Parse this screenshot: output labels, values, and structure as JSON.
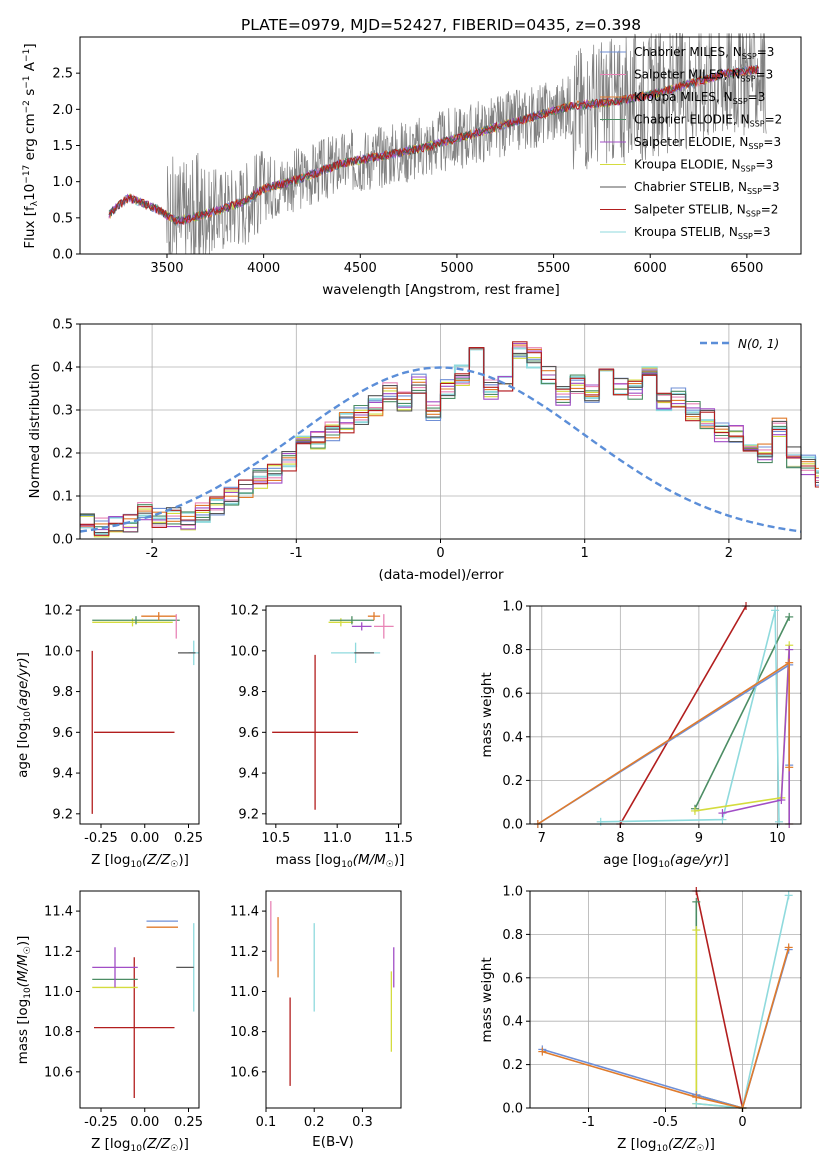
{
  "title": "PLATE=0979, MJD=52427, FIBERID=0435, z=0.398",
  "colors": {
    "observed": "#808080",
    "Chabrier MILES": "#6f8fd6",
    "Salpeter MILES": "#e884b6",
    "Kroupa MILES": "#e07b2c",
    "Chabrier ELODIE": "#4c8d64",
    "Salpeter ELODIE": "#a14ec6",
    "Kroupa ELODIE": "#d4dc3e",
    "Chabrier STELIB": "#555555",
    "Salpeter STELIB": "#b21e1e",
    "Kroupa STELIB": "#8fdadd",
    "normal_fit": "#5b8ed8"
  },
  "chart_data": [
    {
      "type": "line",
      "xlabel": "wavelength [Angstrom, rest frame]",
      "ylabel": "Flux [f_λ 10^-17 erg cm^-2 s^-1 A^-1]",
      "xlim": [
        3050,
        6780
      ],
      "ylim": [
        0,
        3.0
      ],
      "xticks": [
        3500,
        4000,
        4500,
        5000,
        5500,
        6000,
        6500
      ],
      "yticks": [
        0.0,
        0.5,
        1.0,
        1.5,
        2.0,
        2.5
      ],
      "legend_position": "top-right",
      "legend": [
        {
          "model": "Chabrier MILES",
          "n": "3"
        },
        {
          "model": "Salpeter MILES",
          "n": "3"
        },
        {
          "model": "Kroupa MILES",
          "n": "3"
        },
        {
          "model": "Chabrier ELODIE",
          "n": "2"
        },
        {
          "model": "Salpeter ELODIE",
          "n": "3"
        },
        {
          "model": "Kroupa ELODIE",
          "n": "3"
        },
        {
          "model": "Chabrier STELIB",
          "n": "3"
        },
        {
          "model": "Salpeter STELIB",
          "n": "2"
        },
        {
          "model": "Kroupa STELIB",
          "n": "3"
        }
      ],
      "model_continuum": {
        "x": [
          3200,
          3300,
          3450,
          3550,
          3700,
          3900,
          4000,
          4200,
          4400,
          4600,
          4800,
          5000,
          5200,
          5400,
          5600,
          5800,
          6000,
          6200,
          6400,
          6560
        ],
        "y": [
          0.55,
          0.78,
          0.62,
          0.45,
          0.55,
          0.72,
          0.9,
          1.05,
          1.25,
          1.35,
          1.45,
          1.6,
          1.75,
          1.9,
          2.05,
          2.1,
          2.2,
          2.35,
          2.5,
          2.55
        ]
      }
    },
    {
      "type": "line",
      "xlabel": "(data-model)/error",
      "ylabel": "Normed distribution",
      "xlim": [
        -2.5,
        2.5
      ],
      "ylim": [
        0,
        0.5
      ],
      "xticks": [
        -2,
        -1,
        0,
        1,
        2
      ],
      "yticks": [
        0.0,
        0.1,
        0.2,
        0.3,
        0.4,
        0.5
      ],
      "legend_position": "top-right",
      "normal_label": "N(0,1)",
      "hist_x_start": -2.5,
      "hist_bin_width": 0.1,
      "hist_values": [
        0.04,
        0.03,
        0.03,
        0.04,
        0.06,
        0.05,
        0.05,
        0.04,
        0.06,
        0.08,
        0.1,
        0.12,
        0.14,
        0.15,
        0.18,
        0.22,
        0.23,
        0.25,
        0.27,
        0.29,
        0.31,
        0.34,
        0.32,
        0.36,
        0.3,
        0.35,
        0.38,
        0.46,
        0.35,
        0.36,
        0.44,
        0.42,
        0.38,
        0.33,
        0.36,
        0.34,
        0.39,
        0.36,
        0.35,
        0.38,
        0.32,
        0.33,
        0.3,
        0.28,
        0.25,
        0.24,
        0.22,
        0.2,
        0.26,
        0.19,
        0.17,
        0.14,
        0.13,
        0.12,
        0.13,
        0.1,
        0.09,
        0.08,
        0.07,
        0.08,
        0.09,
        0.07,
        0.08,
        0.06,
        0.06,
        0.05,
        0.04,
        0.04,
        0.03,
        0.03
      ]
    },
    {
      "type": "scatter",
      "xlabel": "Z [log10(Z/Z☉)]",
      "ylabel": "age [log10(age/yr)]",
      "xlim": [
        -0.37,
        0.31
      ],
      "ylim": [
        9.15,
        10.22
      ],
      "xticks": [
        -0.25,
        0.0,
        0.25
      ],
      "yticks": [
        9.2,
        9.4,
        9.6,
        9.8,
        10.0,
        10.2
      ],
      "points": [
        {
          "model": "Salpeter STELIB",
          "x": -0.06,
          "xerr": 0.23,
          "y": 9.6,
          "yerr": 0.0
        },
        {
          "model": "Salpeter STELIB",
          "x": -0.3,
          "xerr": 0.0,
          "y": 9.6,
          "yerr": 0.4
        },
        {
          "model": "Kroupa ELODIE",
          "x": -0.07,
          "xerr": 0.23,
          "y": 10.14,
          "yerr": 0.02
        },
        {
          "model": "Chabrier ELODIE",
          "x": -0.05,
          "xerr": 0.25,
          "y": 10.15,
          "yerr": 0.02
        },
        {
          "model": "Kroupa MILES",
          "x": 0.08,
          "xerr": 0.1,
          "y": 10.17,
          "yerr": 0.02
        },
        {
          "model": "Salpeter MILES",
          "x": 0.18,
          "xerr": 0.0,
          "y": 10.12,
          "yerr": 0.06
        },
        {
          "model": "Kroupa STELIB",
          "x": 0.28,
          "xerr": 0.03,
          "y": 9.99,
          "yerr": 0.06
        },
        {
          "model": "Chabrier STELIB",
          "x": 0.24,
          "xerr": 0.05,
          "y": 9.99,
          "yerr": 0.0
        }
      ]
    },
    {
      "type": "scatter",
      "xlabel": "mass [log10(M/M☉)]",
      "ylabel": "",
      "xlim": [
        10.42,
        11.52
      ],
      "ylim": [
        9.15,
        10.22
      ],
      "xticks": [
        10.5,
        11.0,
        11.5
      ],
      "yticks": [
        9.2,
        9.4,
        9.6,
        9.8,
        10.0,
        10.2
      ],
      "points": [
        {
          "model": "Salpeter STELIB",
          "x": 10.82,
          "xerr": 0.35,
          "y": 9.6,
          "yerr": 0.38
        },
        {
          "model": "Kroupa ELODIE",
          "x": 11.03,
          "xerr": 0.1,
          "y": 10.14,
          "yerr": 0.02
        },
        {
          "model": "Chabrier ELODIE",
          "x": 11.12,
          "xerr": 0.18,
          "y": 10.15,
          "yerr": 0.02
        },
        {
          "model": "Salpeter ELODIE",
          "x": 11.2,
          "xerr": 0.08,
          "y": 10.12,
          "yerr": 0.02
        },
        {
          "model": "Salpeter MILES",
          "x": 11.38,
          "xerr": 0.08,
          "y": 10.12,
          "yerr": 0.06
        },
        {
          "model": "Kroupa MILES",
          "x": 11.3,
          "xerr": 0.05,
          "y": 10.17,
          "yerr": 0.02
        },
        {
          "model": "Kroupa STELIB",
          "x": 11.15,
          "xerr": 0.2,
          "y": 9.99,
          "yerr": 0.05
        },
        {
          "model": "Chabrier STELIB",
          "x": 11.22,
          "xerr": 0.08,
          "y": 9.99,
          "yerr": 0.0
        }
      ]
    },
    {
      "type": "line",
      "xlabel": "age [log10(age/yr)]",
      "ylabel": "mass weight",
      "xlim": [
        6.85,
        10.3
      ],
      "ylim": [
        0,
        1.0
      ],
      "xticks": [
        7,
        8,
        9,
        10
      ],
      "yticks": [
        0.0,
        0.2,
        0.4,
        0.6,
        0.8,
        1.0
      ],
      "series": [
        {
          "model": "Salpeter STELIB",
          "x": [
            8.0,
            9.6
          ],
          "y": [
            0.0,
            1.0
          ]
        },
        {
          "model": "Chabrier ELODIE",
          "x": [
            8.95,
            10.15
          ],
          "y": [
            0.07,
            0.95
          ]
        },
        {
          "model": "Kroupa STELIB",
          "x": [
            7.75,
            9.3,
            9.97,
            10.02
          ],
          "y": [
            0.01,
            0.02,
            0.98,
            0.01
          ]
        },
        {
          "model": "Kroupa ELODIE",
          "x": [
            8.95,
            10.05,
            10.15,
            10.15
          ],
          "y": [
            0.06,
            0.12,
            0.82,
            0.0
          ]
        },
        {
          "model": "Salpeter ELODIE",
          "x": [
            9.3,
            10.05,
            10.15,
            10.15
          ],
          "y": [
            0.05,
            0.11,
            0.8,
            0.0
          ]
        },
        {
          "model": "Chabrier MILES",
          "x": [
            6.95,
            10.15,
            10.15
          ],
          "y": [
            0.0,
            0.73,
            0.27
          ]
        },
        {
          "model": "Kroupa MILES",
          "x": [
            6.95,
            10.15,
            10.15
          ],
          "y": [
            0.0,
            0.74,
            0.26
          ]
        }
      ]
    },
    {
      "type": "scatter",
      "xlabel": "Z [log10(Z/Z☉)]",
      "ylabel": "mass [log10(M/M☉)]",
      "xlim": [
        -0.37,
        0.31
      ],
      "ylim": [
        10.42,
        11.5
      ],
      "xticks": [
        -0.25,
        0.0,
        0.25
      ],
      "yticks": [
        10.6,
        10.8,
        11.0,
        11.2,
        11.4
      ],
      "points": [
        {
          "model": "Salpeter STELIB",
          "x": -0.06,
          "xerr": 0.23,
          "y": 10.82,
          "yerr": 0.35
        },
        {
          "model": "Kroupa ELODIE",
          "x": -0.17,
          "xerr": 0.13,
          "y": 11.02,
          "yerr": 0.0
        },
        {
          "model": "Chabrier ELODIE",
          "x": -0.17,
          "xerr": 0.13,
          "y": 11.06,
          "yerr": 0.0
        },
        {
          "model": "Salpeter ELODIE",
          "x": -0.17,
          "xerr": 0.13,
          "y": 11.12,
          "yerr": 0.1
        },
        {
          "model": "Kroupa MILES",
          "x": 0.1,
          "xerr": 0.09,
          "y": 11.32,
          "yerr": 0.0
        },
        {
          "model": "Chabrier MILES",
          "x": 0.1,
          "xerr": 0.09,
          "y": 11.35,
          "yerr": 0.0
        },
        {
          "model": "Salpeter MILES",
          "x": 0.18,
          "xerr": 0.0,
          "y": 11.44,
          "yerr": 0.0
        },
        {
          "model": "Kroupa STELIB",
          "x": 0.28,
          "xerr": 0.0,
          "y": 11.12,
          "yerr": 0.22
        },
        {
          "model": "Chabrier STELIB",
          "x": 0.23,
          "xerr": 0.05,
          "y": 11.12,
          "yerr": 0.0
        }
      ]
    },
    {
      "type": "scatter",
      "xlabel": "E(B-V)",
      "ylabel": "",
      "xlim": [
        0.1,
        0.38
      ],
      "ylim": [
        10.42,
        11.5
      ],
      "xticks": [
        0.1,
        0.2,
        0.3
      ],
      "yticks": [
        10.6,
        10.8,
        11.0,
        11.2,
        11.4
      ],
      "points": [
        {
          "model": "Salpeter MILES",
          "x": 0.11,
          "y": 11.3,
          "yerr": 0.15
        },
        {
          "model": "Kroupa MILES",
          "x": 0.125,
          "y": 11.22,
          "yerr": 0.15
        },
        {
          "model": "Salpeter STELIB",
          "x": 0.15,
          "y": 10.75,
          "yerr": 0.22
        },
        {
          "model": "Kroupa STELIB",
          "x": 0.2,
          "y": 11.12,
          "yerr": 0.22
        },
        {
          "model": "Kroupa ELODIE",
          "x": 0.36,
          "y": 10.9,
          "yerr": 0.2
        },
        {
          "model": "Salpeter ELODIE",
          "x": 0.365,
          "y": 11.12,
          "yerr": 0.1
        }
      ]
    },
    {
      "type": "line",
      "xlabel": "Z [log10(Z/Z☉)]",
      "ylabel": "mass weight",
      "xlim": [
        -1.38,
        0.38
      ],
      "ylim": [
        0,
        1.0
      ],
      "xticks": [
        -1.0,
        -0.5,
        0.0
      ],
      "yticks": [
        0.0,
        0.2,
        0.4,
        0.6,
        0.8,
        1.0
      ],
      "series": [
        {
          "model": "Salpeter STELIB",
          "x": [
            -0.3,
            0.0
          ],
          "y": [
            1.0,
            0.0
          ]
        },
        {
          "model": "Chabrier ELODIE",
          "x": [
            -0.3,
            -0.3,
            0.0
          ],
          "y": [
            0.95,
            0.06,
            0.0
          ]
        },
        {
          "model": "Kroupa ELODIE",
          "x": [
            -0.3,
            -0.3,
            0.0
          ],
          "y": [
            0.82,
            0.02,
            0.0
          ]
        },
        {
          "model": "Kroupa STELIB",
          "x": [
            -0.3,
            0.0,
            0.3
          ],
          "y": [
            0.02,
            0.0,
            0.98
          ]
        },
        {
          "model": "Chabrier MILES",
          "x": [
            -1.3,
            -0.3,
            0.0,
            0.3
          ],
          "y": [
            0.27,
            0.06,
            0.0,
            0.73
          ]
        },
        {
          "model": "Kroupa MILES",
          "x": [
            -1.3,
            -0.3,
            0.0,
            0.3
          ],
          "y": [
            0.26,
            0.05,
            0.0,
            0.74
          ]
        }
      ]
    }
  ]
}
